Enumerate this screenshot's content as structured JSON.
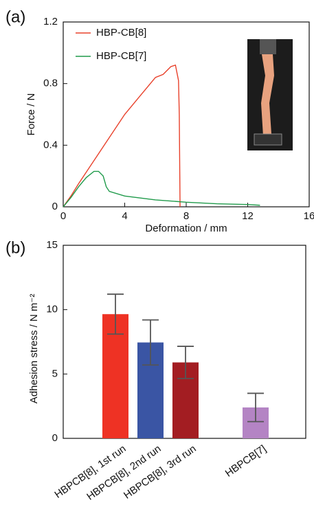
{
  "chart_data": [
    {
      "type": "line",
      "panel_label": "(a)",
      "x_label": "Deformation / mm",
      "y_label": "Force / N",
      "xlim": [
        0,
        16
      ],
      "xticks": [
        0,
        4,
        8,
        12,
        16
      ],
      "ylim": [
        0,
        1.2
      ],
      "yticks": [
        0,
        0.4,
        0.8,
        1.2
      ],
      "series": [
        {
          "name": "HBP-CB[8]",
          "color": "#e8402a",
          "x": [
            0,
            0.5,
            1,
            2,
            3,
            4,
            5,
            6,
            6.5,
            7,
            7.3,
            7.5,
            7.55,
            7.6
          ],
          "values": [
            0,
            0.07,
            0.15,
            0.3,
            0.45,
            0.6,
            0.72,
            0.84,
            0.86,
            0.91,
            0.92,
            0.82,
            0.6,
            0
          ]
        },
        {
          "name": "HBP-CB[7]",
          "color": "#1f9a4a",
          "x": [
            0,
            0.5,
            1,
            1.5,
            2,
            2.3,
            2.6,
            2.8,
            3,
            4,
            6,
            8,
            10,
            12,
            12.8
          ],
          "values": [
            0,
            0.06,
            0.13,
            0.19,
            0.23,
            0.23,
            0.2,
            0.13,
            0.1,
            0.07,
            0.045,
            0.03,
            0.02,
            0.015,
            0.01
          ]
        }
      ]
    },
    {
      "type": "bar",
      "panel_label": "(b)",
      "y_label": "Adhesion stress / N m⁻²",
      "ylim": [
        0,
        15
      ],
      "yticks": [
        0,
        5,
        10,
        15
      ],
      "categories": [
        "HBPCB[8], 1st run",
        "HBPCB[8], 2nd run",
        "HBPCB[8], 3rd run",
        null,
        "HBPCB[7]"
      ],
      "values": [
        9.65,
        7.45,
        5.9,
        null,
        2.4
      ],
      "errors": [
        1.55,
        1.75,
        1.25,
        null,
        1.1
      ],
      "colors": [
        "#ee3224",
        "#3a55a4",
        "#a31d22",
        null,
        "#b484c4"
      ]
    }
  ]
}
